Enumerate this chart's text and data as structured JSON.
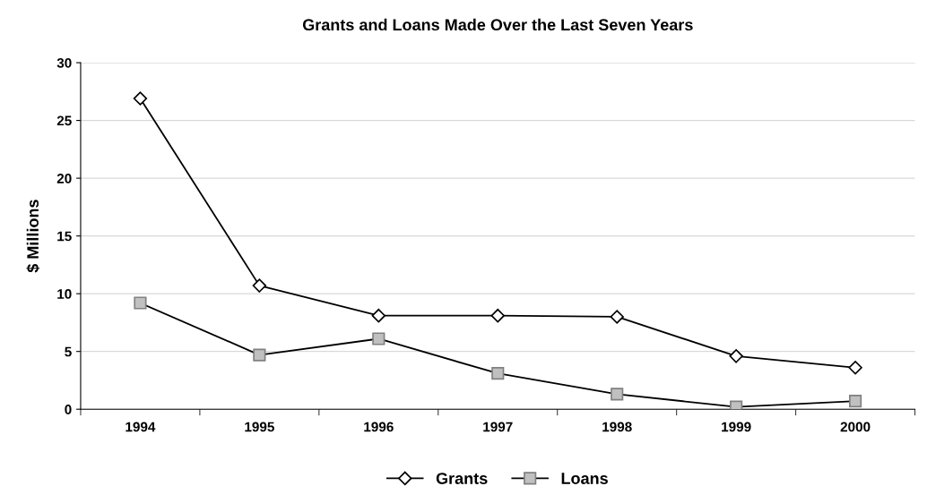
{
  "chart_data": {
    "type": "line",
    "title": "Grants and Loans Made Over the Last Seven Years",
    "ylabel": "$ Millions",
    "categories": [
      "1994",
      "1995",
      "1996",
      "1997",
      "1998",
      "1999",
      "2000"
    ],
    "series": [
      {
        "name": "Grants",
        "color": "#ffffff",
        "marker": "diamond",
        "values": [
          26.9,
          10.7,
          8.1,
          8.1,
          8.0,
          4.6,
          3.6
        ]
      },
      {
        "name": "Loans",
        "color": "#c0c0c0",
        "marker": "square",
        "values": [
          9.2,
          4.7,
          6.1,
          3.1,
          1.3,
          0.2,
          0.7
        ]
      }
    ],
    "ylim": [
      0,
      30
    ],
    "yticks": [
      0,
      5,
      10,
      15,
      20,
      25,
      30
    ],
    "grid": "y",
    "legend": "bottom",
    "line_style": "solid"
  }
}
